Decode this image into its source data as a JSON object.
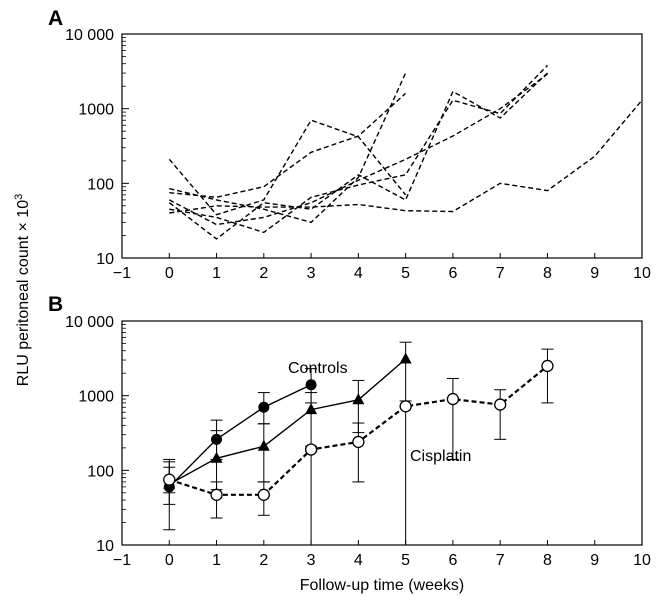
{
  "figure": {
    "ylabel": "RLU peritoneal count × 10",
    "ylabel_superscript": "3",
    "xlabel": "Follow-up time (weeks)"
  },
  "chart_data": [
    {
      "panel": "A",
      "type": "line",
      "style": "dashed",
      "xlim": [
        -1,
        10
      ],
      "ylim": [
        10,
        10000
      ],
      "yscale": "log",
      "xticks": [
        "−1",
        "0",
        "1",
        "2",
        "3",
        "4",
        "5",
        "6",
        "7",
        "8",
        "9",
        "10"
      ],
      "yticks": [
        "10",
        "100",
        "1000",
        "10 000"
      ],
      "series": [
        {
          "x": [
            0,
            1,
            2,
            3,
            4,
            5
          ],
          "y": [
            210,
            38,
            60,
            700,
            420,
            70
          ]
        },
        {
          "x": [
            0,
            1,
            2,
            3,
            4,
            5
          ],
          "y": [
            85,
            60,
            45,
            30,
            120,
            3000
          ]
        },
        {
          "x": [
            0,
            1,
            2,
            3,
            4,
            5
          ],
          "y": [
            75,
            65,
            90,
            260,
            430,
            1600
          ]
        },
        {
          "x": [
            0,
            1,
            2,
            3,
            4,
            5,
            6,
            7,
            8
          ],
          "y": [
            55,
            18,
            55,
            45,
            130,
            60,
            1700,
            750,
            3000
          ]
        },
        {
          "x": [
            0,
            1,
            2,
            3,
            4,
            5,
            6,
            7,
            8
          ],
          "y": [
            45,
            35,
            22,
            65,
            95,
            130,
            1300,
            860,
            3800
          ]
        },
        {
          "x": [
            0,
            1,
            2,
            3,
            4,
            5,
            6,
            7,
            8
          ],
          "y": [
            60,
            28,
            35,
            55,
            110,
            210,
            430,
            1000,
            2900
          ]
        },
        {
          "x": [
            0,
            1,
            2,
            3,
            4,
            5,
            6,
            7,
            8,
            9,
            10
          ],
          "y": [
            40,
            50,
            48,
            48,
            52,
            43,
            42,
            100,
            80,
            230,
            1300
          ]
        }
      ]
    },
    {
      "panel": "B",
      "type": "line",
      "xlim": [
        -1,
        10
      ],
      "ylim": [
        10,
        10000
      ],
      "yscale": "log",
      "xticks": [
        "−1",
        "0",
        "1",
        "2",
        "3",
        "4",
        "5",
        "6",
        "7",
        "8",
        "9",
        "10"
      ],
      "yticks": [
        "10",
        "100",
        "1000",
        "10 000"
      ],
      "series": [
        {
          "label": "Controls",
          "marker": "filled-circle",
          "line": "solid",
          "x": [
            0,
            1,
            2,
            3
          ],
          "y": [
            60,
            260,
            700,
            1400
          ],
          "err_low": [
            16,
            140,
            420,
            800
          ],
          "err_high": [
            130,
            470,
            1100,
            2300
          ]
        },
        {
          "marker": "filled-triangle",
          "line": "solid",
          "x": [
            0,
            1,
            2,
            3,
            4,
            5
          ],
          "y": [
            65,
            145,
            210,
            650,
            880,
            3100
          ],
          "err_low": [
            35,
            55,
            70,
            180,
            320,
            850
          ],
          "err_high": [
            110,
            340,
            420,
            1100,
            1600,
            5200
          ]
        },
        {
          "label": "Cisplatin",
          "marker": "open-circle",
          "line": "dashed",
          "x": [
            0,
            1,
            2,
            3,
            4,
            5,
            6,
            7,
            8
          ],
          "y": [
            75,
            47,
            47,
            190,
            240,
            720,
            900,
            760,
            2500
          ],
          "err_low": [
            50,
            23,
            25,
            10,
            70,
            10,
            140,
            260,
            800
          ],
          "err_high": [
            140,
            70,
            70,
            210,
            430,
            720,
            1700,
            1200,
            4200
          ]
        }
      ],
      "annotations": [
        "Controls",
        "Cisplatin"
      ]
    }
  ]
}
